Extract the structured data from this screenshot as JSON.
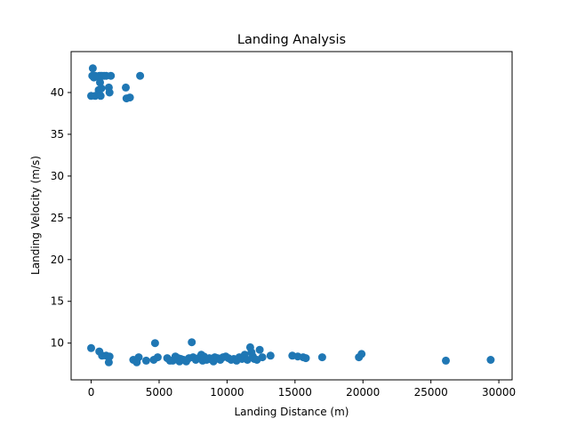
{
  "chart_data": {
    "type": "scatter",
    "title": "Landing Analysis",
    "xlabel": "Landing Distance (m)",
    "ylabel": "Landing Velocity (m/s)",
    "xlim": [
      -1475,
      30975
    ],
    "ylim": [
      5.6,
      44.9
    ],
    "xticks": [
      0,
      5000,
      10000,
      15000,
      20000,
      25000,
      30000
    ],
    "yticks": [
      10,
      15,
      20,
      25,
      30,
      35,
      40
    ],
    "grid": false,
    "marker_color": "#1f77b4",
    "points": [
      [
        120,
        42.9
      ],
      [
        80,
        42.0
      ],
      [
        300,
        42.0
      ],
      [
        450,
        41.9
      ],
      [
        600,
        42.0
      ],
      [
        700,
        42.0
      ],
      [
        800,
        42.0
      ],
      [
        950,
        42.0
      ],
      [
        1100,
        42.0
      ],
      [
        1450,
        42.0
      ],
      [
        3600,
        42.0
      ],
      [
        200,
        41.8
      ],
      [
        650,
        41.2
      ],
      [
        750,
        40.5
      ],
      [
        550,
        40.3
      ],
      [
        1300,
        40.6
      ],
      [
        1350,
        40.0
      ],
      [
        2550,
        40.6
      ],
      [
        0,
        39.6
      ],
      [
        300,
        39.6
      ],
      [
        600,
        39.8
      ],
      [
        700,
        39.6
      ],
      [
        2600,
        39.3
      ],
      [
        2850,
        39.4
      ],
      [
        0,
        9.4
      ],
      [
        600,
        9.0
      ],
      [
        800,
        8.5
      ],
      [
        1100,
        8.5
      ],
      [
        1350,
        8.4
      ],
      [
        1300,
        7.7
      ],
      [
        3100,
        8.0
      ],
      [
        3350,
        7.7
      ],
      [
        3500,
        8.3
      ],
      [
        4050,
        7.9
      ],
      [
        4600,
        8.0
      ],
      [
        4700,
        10.0
      ],
      [
        4900,
        8.3
      ],
      [
        5600,
        8.2
      ],
      [
        5800,
        7.9
      ],
      [
        6000,
        7.9
      ],
      [
        6200,
        8.4
      ],
      [
        6400,
        8.2
      ],
      [
        6500,
        7.8
      ],
      [
        6600,
        8.1
      ],
      [
        6800,
        8.0
      ],
      [
        7000,
        7.8
      ],
      [
        7200,
        8.2
      ],
      [
        7400,
        10.1
      ],
      [
        7500,
        8.3
      ],
      [
        7700,
        8.0
      ],
      [
        7900,
        8.2
      ],
      [
        8100,
        8.6
      ],
      [
        8200,
        7.9
      ],
      [
        8300,
        8.4
      ],
      [
        8500,
        8.0
      ],
      [
        8700,
        8.2
      ],
      [
        8900,
        8.0
      ],
      [
        9000,
        7.8
      ],
      [
        9100,
        8.3
      ],
      [
        9300,
        8.2
      ],
      [
        9500,
        8.0
      ],
      [
        9700,
        8.3
      ],
      [
        9900,
        8.4
      ],
      [
        10100,
        8.2
      ],
      [
        10300,
        8.0
      ],
      [
        10500,
        8.1
      ],
      [
        10700,
        7.9
      ],
      [
        10900,
        8.3
      ],
      [
        11100,
        8.1
      ],
      [
        11300,
        8.6
      ],
      [
        11500,
        8.0
      ],
      [
        11700,
        9.5
      ],
      [
        11800,
        8.9
      ],
      [
        11900,
        8.4
      ],
      [
        12000,
        8.1
      ],
      [
        12200,
        8.0
      ],
      [
        12400,
        9.2
      ],
      [
        12600,
        8.3
      ],
      [
        13200,
        8.5
      ],
      [
        14800,
        8.5
      ],
      [
        15200,
        8.4
      ],
      [
        15600,
        8.3
      ],
      [
        15800,
        8.2
      ],
      [
        17000,
        8.3
      ],
      [
        19700,
        8.3
      ],
      [
        19900,
        8.7
      ],
      [
        26100,
        7.9
      ],
      [
        29400,
        8.0
      ]
    ]
  }
}
